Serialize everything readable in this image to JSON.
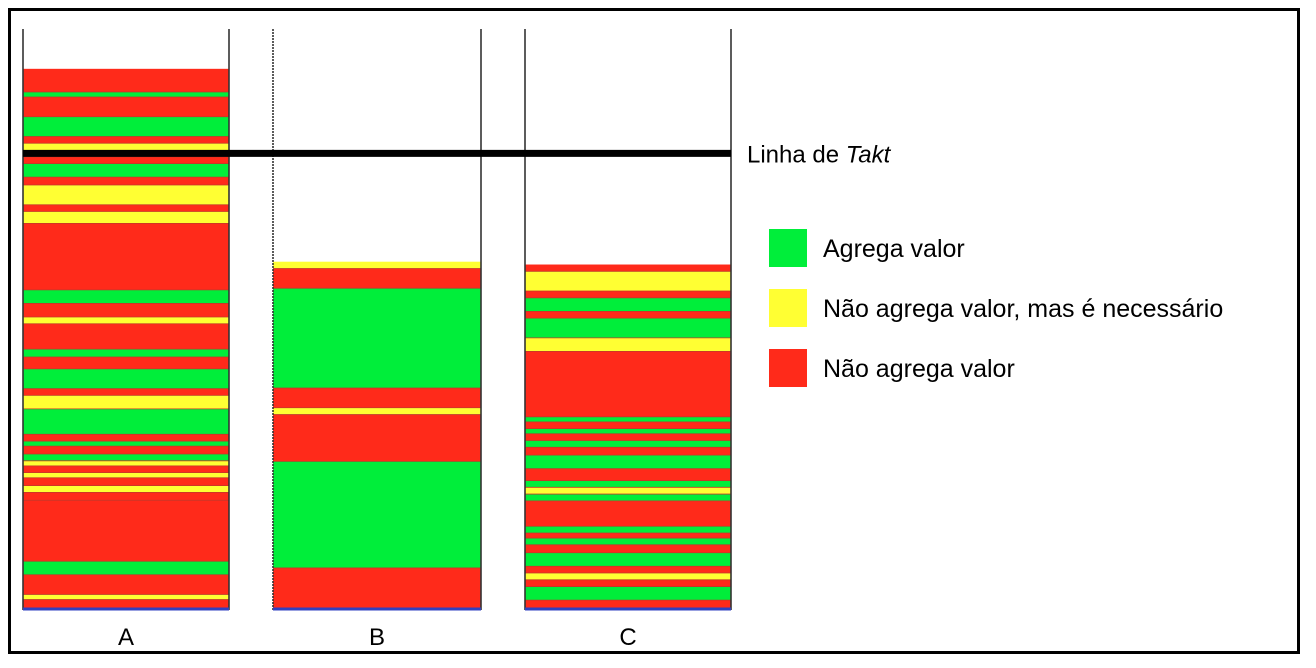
{
  "chart_data": {
    "type": "bar",
    "categories": [
      "A",
      "B",
      "C"
    ],
    "takt_label": {
      "prefix": "Linha de ",
      "emphasis": "Takt"
    },
    "legend": [
      {
        "label": "Agrega valor",
        "color_key": "green"
      },
      {
        "label": "Não agrega valor, mas é necessário",
        "color_key": "yellow"
      },
      {
        "label": "Não agrega valor",
        "color_key": "red"
      }
    ],
    "colors": {
      "green": "#00ee3a",
      "yellow": "#ffff33",
      "red": "#ff2a1a",
      "separator": "#c0392b",
      "baseline": "#3040c0",
      "takt": "#000000"
    },
    "scale": {
      "total_height": 100,
      "takt_value": 80.6
    },
    "stacks": [
      {
        "name": "A",
        "segments": [
          [
            "red",
            4.1
          ],
          [
            "green",
            0.9
          ],
          [
            "red",
            3.5
          ],
          [
            "green",
            3.5
          ],
          [
            "red",
            1.2
          ],
          [
            "yellow",
            2.4
          ],
          [
            "red",
            1.2
          ],
          [
            "green",
            2.4
          ],
          [
            "red",
            1.4
          ],
          [
            "yellow",
            3.5
          ],
          [
            "red",
            1.2
          ],
          [
            "yellow",
            2.1
          ],
          [
            "red",
            11.8
          ],
          [
            "green",
            2.4
          ],
          [
            "red",
            2.4
          ],
          [
            "yellow",
            1.2
          ],
          [
            "red",
            4.5
          ],
          [
            "green",
            1.4
          ],
          [
            "red",
            2.1
          ],
          [
            "green",
            3.5
          ],
          [
            "red",
            1.2
          ],
          [
            "yellow",
            2.4
          ],
          [
            "green",
            4.5
          ],
          [
            "red",
            1.2
          ],
          [
            "green",
            0.9
          ],
          [
            "red",
            1.4
          ],
          [
            "green",
            1.2
          ],
          [
            "yellow",
            0.9
          ],
          [
            "red",
            1.2
          ],
          [
            "yellow",
            0.9
          ],
          [
            "red",
            1.4
          ],
          [
            "yellow",
            1.2
          ],
          [
            "red",
            1.4
          ],
          [
            "red",
            10.8
          ],
          [
            "green",
            2.4
          ],
          [
            "red",
            3.5
          ],
          [
            "yellow",
            0.9
          ],
          [
            "red",
            1.5
          ]
        ]
      },
      {
        "name": "B",
        "segments": [
          [
            "yellow",
            1.2
          ],
          [
            "red",
            3.5
          ],
          [
            "green",
            17.7
          ],
          [
            "red",
            3.5
          ],
          [
            "yellow",
            1.2
          ],
          [
            "red",
            8.3
          ],
          [
            "green",
            18.9
          ],
          [
            "red",
            7.1
          ]
        ]
      },
      {
        "name": "C",
        "segments": [
          [
            "red",
            1.2
          ],
          [
            "yellow",
            3.5
          ],
          [
            "red",
            1.2
          ],
          [
            "green",
            2.4
          ],
          [
            "red",
            1.2
          ],
          [
            "green",
            3.5
          ],
          [
            "yellow",
            2.4
          ],
          [
            "red",
            11.6
          ],
          [
            "green",
            0.9
          ],
          [
            "red",
            1.2
          ],
          [
            "green",
            0.9
          ],
          [
            "red",
            1.2
          ],
          [
            "green",
            1.2
          ],
          [
            "red",
            1.4
          ],
          [
            "green",
            2.4
          ],
          [
            "red",
            2.1
          ],
          [
            "green",
            1.2
          ],
          [
            "yellow",
            1.2
          ],
          [
            "green",
            1.2
          ],
          [
            "red",
            4.5
          ],
          [
            "green",
            1.2
          ],
          [
            "red",
            0.9
          ],
          [
            "green",
            1.2
          ],
          [
            "red",
            1.4
          ],
          [
            "green",
            2.4
          ],
          [
            "red",
            1.2
          ],
          [
            "yellow",
            1.2
          ],
          [
            "red",
            1.2
          ],
          [
            "green",
            2.4
          ],
          [
            "red",
            1.4
          ]
        ]
      }
    ]
  }
}
